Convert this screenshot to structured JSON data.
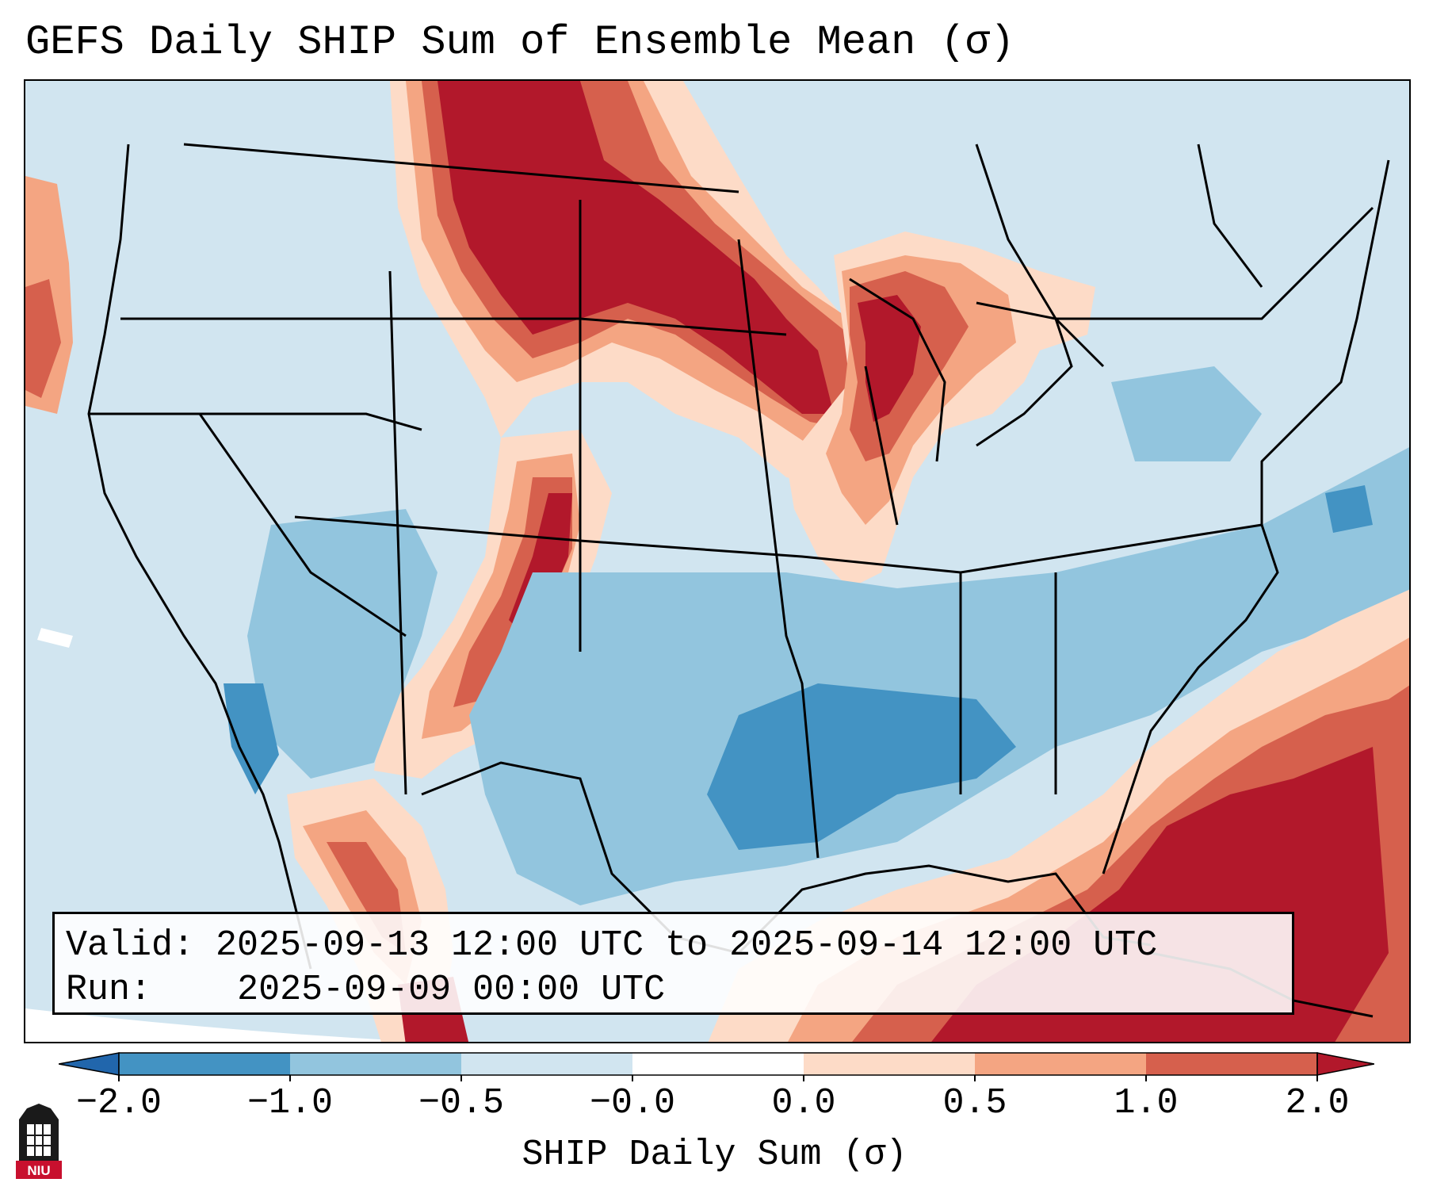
{
  "title": "GEFS Daily SHIP Sum of Ensemble Mean (σ)",
  "info": {
    "valid_label": "Valid:",
    "valid_value": "2025-09-13 12:00 UTC to 2025-09-14 12:00 UTC",
    "run_label": "Run:",
    "run_value": "2025-09-09 00:00 UTC"
  },
  "colorbar": {
    "label": "SHIP Daily Sum (σ)",
    "ticks": [
      "−2.0",
      "−1.0",
      "−0.5",
      "−0.0",
      "0.0",
      "0.5",
      "1.0",
      "2.0"
    ],
    "colors": {
      "below": "#2166ac",
      "bin1": "#4393c3",
      "bin2": "#92c5de",
      "bin3": "#d1e5f0",
      "bin4": "#fddbc7",
      "bin5": "#f4a582",
      "bin6": "#d6604d",
      "above": "#b2182b"
    }
  },
  "logo": {
    "text": "NIU",
    "color": "#c8102e"
  }
}
